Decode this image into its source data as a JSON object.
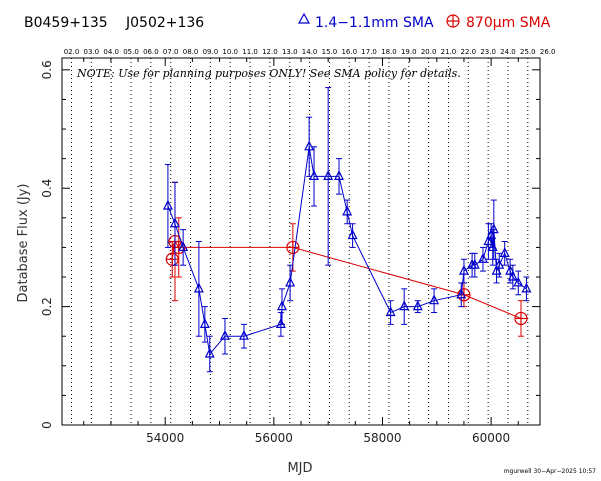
{
  "header": {
    "source1": "B0459+135",
    "source2": "J0502+136",
    "legend_blue": "1.4−1.1mm SMA",
    "legend_red_prefix": "870",
    "legend_red_mu": "μ",
    "legend_red_suffix": "m SMA"
  },
  "note": "NOTE: Use for planning purposes ONLY!  See SMA policy for details.",
  "credit": "mgurwell 30−Apr−2025 10:57",
  "colors": {
    "blue": "#0000cc",
    "red": "#dd0000",
    "axis": "#000000"
  },
  "chart_data": {
    "type": "scatter",
    "xlabel": "MJD",
    "ylabel": "Database Flux (Jy)",
    "xlim": [
      52100,
      60900
    ],
    "ylim": [
      0,
      0.62
    ],
    "xticks": [
      54000,
      56000,
      58000,
      60000
    ],
    "yticks": [
      0,
      0.2,
      0.4,
      0.6
    ],
    "ytick_labels": [
      "0",
      "0.2",
      "0.4",
      "0.6"
    ],
    "year_ticks": [
      "02.0",
      "03.0",
      "04.0",
      "05.0",
      "06.0",
      "07.0",
      "08.0",
      "09.0",
      "10.0",
      "11.0",
      "12.0",
      "13.0",
      "14.0",
      "15.0",
      "16.0",
      "17.0",
      "18.0",
      "19.0",
      "20.0",
      "21.0",
      "22.0",
      "23.0",
      "24.0",
      "25.0",
      "26.0"
    ],
    "year_tick_mjd_start": 52275,
    "year_tick_step": 365.25,
    "grid": "vertical dotted at year ticks",
    "series": [
      {
        "name": "1.4−1.1mm SMA",
        "marker": "triangle",
        "x": [
          54050,
          54180,
          54330,
          54620,
          54730,
          54820,
          55100,
          55450,
          56130,
          56150,
          56300,
          56650,
          56740,
          57000,
          57200,
          57350,
          57450,
          58150,
          58400,
          58650,
          58950,
          59450,
          59500,
          59650,
          59700,
          59850,
          59950,
          60000,
          60030,
          60050,
          60100,
          60150,
          60250,
          60350,
          60400,
          60500,
          60650
        ],
        "y": [
          0.37,
          0.34,
          0.3,
          0.23,
          0.17,
          0.12,
          0.15,
          0.15,
          0.17,
          0.2,
          0.24,
          0.47,
          0.42,
          0.42,
          0.42,
          0.36,
          0.32,
          0.19,
          0.2,
          0.2,
          0.21,
          0.22,
          0.26,
          0.27,
          0.27,
          0.28,
          0.31,
          0.32,
          0.3,
          0.33,
          0.26,
          0.27,
          0.29,
          0.26,
          0.25,
          0.24,
          0.23
        ],
        "yerr": [
          0.07,
          0.07,
          0.03,
          0.08,
          0.03,
          0.03,
          0.03,
          0.02,
          0.02,
          0.03,
          0.03,
          0.05,
          0.05,
          0.15,
          0.03,
          0.02,
          0.02,
          0.02,
          0.03,
          0.01,
          0.02,
          0.02,
          0.02,
          0.02,
          0.02,
          0.02,
          0.03,
          0.02,
          0.03,
          0.05,
          0.02,
          0.02,
          0.02,
          0.02,
          0.02,
          0.02,
          0.02
        ]
      },
      {
        "name": "870μm SMA",
        "marker": "circle-plus",
        "x": [
          54130,
          54180,
          54250,
          56350,
          59500,
          60550
        ],
        "y": [
          0.28,
          0.31,
          0.3,
          0.3,
          0.22,
          0.18
        ],
        "yerr": [
          0.03,
          0.1,
          0.05,
          0.04,
          0.02,
          0.03
        ]
      }
    ]
  }
}
